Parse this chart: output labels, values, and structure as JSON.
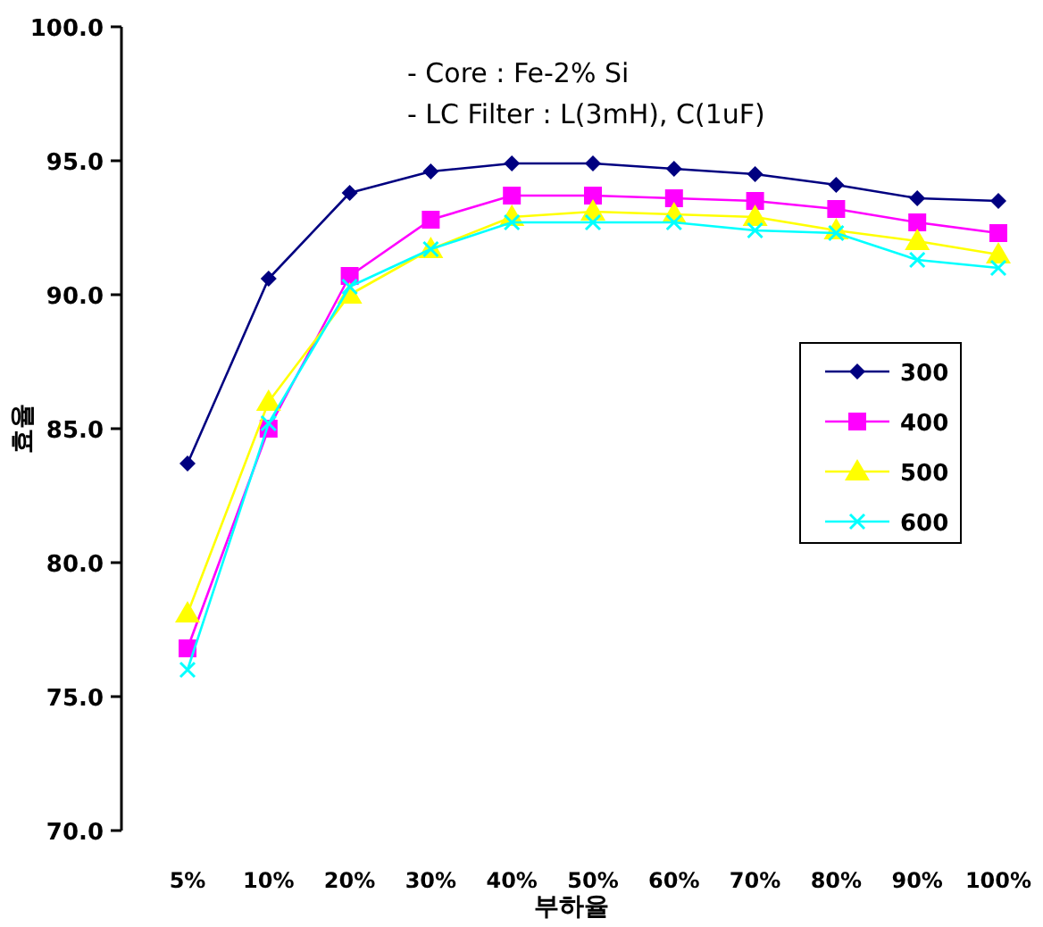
{
  "chart_data": {
    "type": "line",
    "xlabel": "부하율",
    "ylabel": "효율",
    "annotations": [
      "- Core : Fe-2% Si",
      "- LC Filter : L(3mH), C(1uF)"
    ],
    "categories": [
      "5%",
      "10%",
      "20%",
      "30%",
      "40%",
      "50%",
      "60%",
      "70%",
      "80%",
      "90%",
      "100%"
    ],
    "ylim": [
      70,
      100
    ],
    "yticks": [
      {
        "value": 70,
        "label": "70.0"
      },
      {
        "value": 75,
        "label": "75.0"
      },
      {
        "value": 80,
        "label": "80.0"
      },
      {
        "value": 85,
        "label": "85.0"
      },
      {
        "value": 90,
        "label": "90.0"
      },
      {
        "value": 95,
        "label": "95.0"
      },
      {
        "value": 100,
        "label": "100.0"
      }
    ],
    "grid": false,
    "legend": "right",
    "series": [
      {
        "name": "300",
        "color": "#000080",
        "marker": "diamond",
        "values": [
          83.7,
          90.6,
          93.8,
          94.6,
          94.9,
          94.9,
          94.7,
          94.5,
          94.1,
          93.6,
          93.5
        ]
      },
      {
        "name": "400",
        "color": "#ff00ff",
        "marker": "square",
        "values": [
          76.8,
          85.0,
          90.7,
          92.8,
          93.7,
          93.7,
          93.6,
          93.5,
          93.2,
          92.7,
          92.3
        ]
      },
      {
        "name": "500",
        "color": "#ffff00",
        "marker": "triangle",
        "values": [
          78.1,
          86.0,
          90.0,
          91.7,
          92.9,
          93.1,
          93.0,
          92.9,
          92.4,
          92.0,
          91.5
        ]
      },
      {
        "name": "600",
        "color": "#00ffff",
        "marker": "cross",
        "values": [
          76.0,
          85.2,
          90.3,
          91.7,
          92.7,
          92.7,
          92.7,
          92.4,
          92.3,
          91.3,
          91.0
        ]
      }
    ]
  }
}
